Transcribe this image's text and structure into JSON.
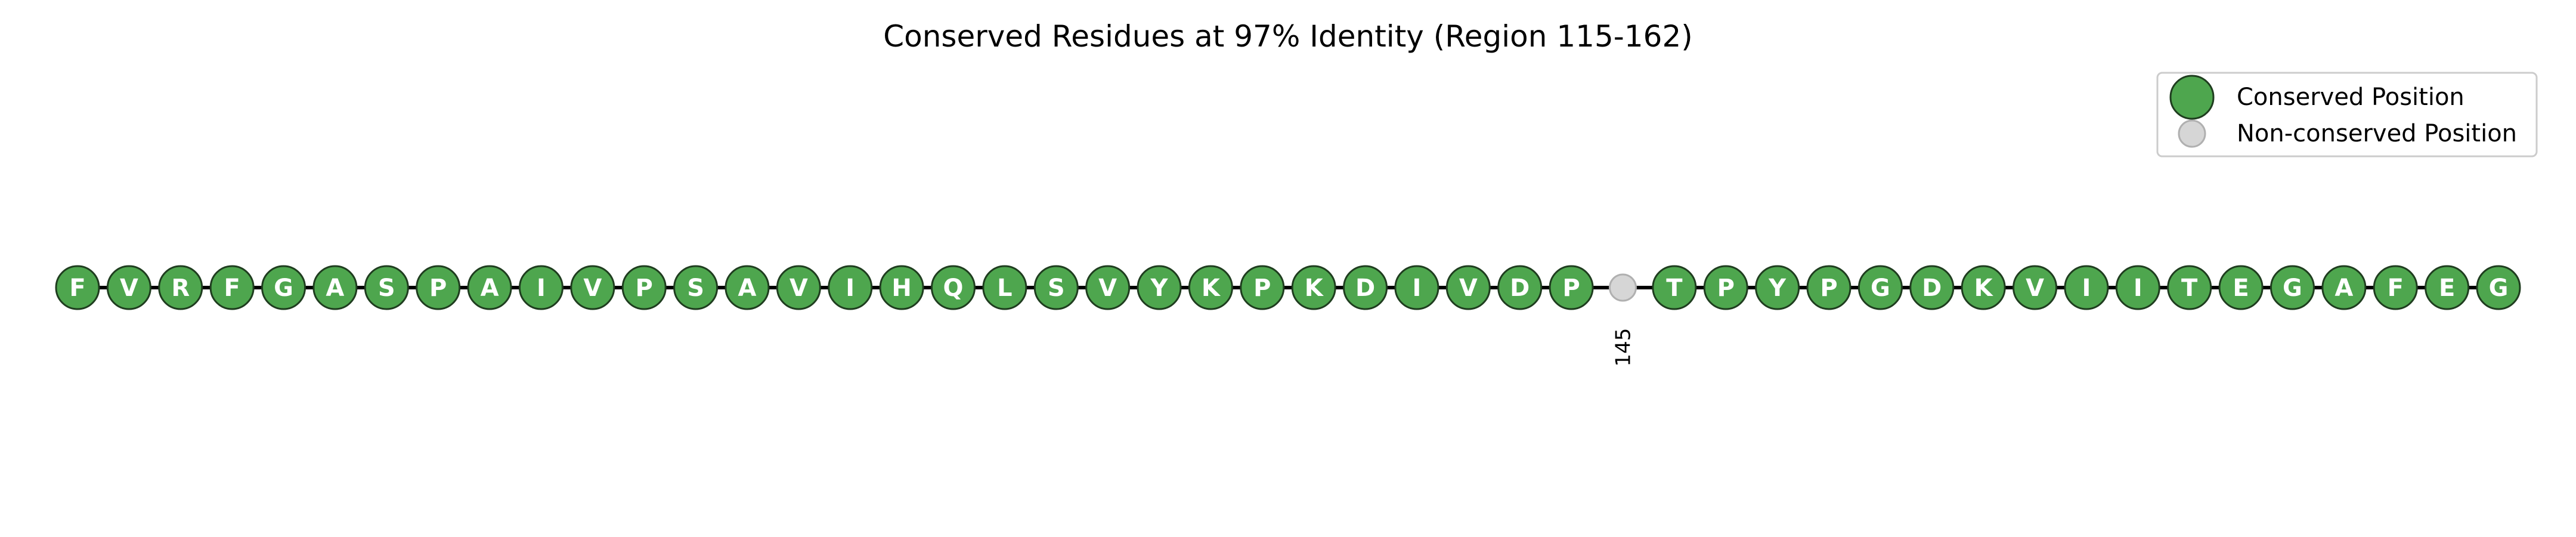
{
  "chart_data": {
    "type": "sequence-conservation",
    "title": "Conserved Residues at 97% Identity (Region 115-162)",
    "region_start": 115,
    "region_end": 162,
    "identity_threshold_percent": 97,
    "residues": [
      {
        "position": 115,
        "residue": "F",
        "conserved": true
      },
      {
        "position": 116,
        "residue": "V",
        "conserved": true
      },
      {
        "position": 117,
        "residue": "R",
        "conserved": true
      },
      {
        "position": 118,
        "residue": "F",
        "conserved": true
      },
      {
        "position": 119,
        "residue": "G",
        "conserved": true
      },
      {
        "position": 120,
        "residue": "A",
        "conserved": true
      },
      {
        "position": 121,
        "residue": "S",
        "conserved": true
      },
      {
        "position": 122,
        "residue": "P",
        "conserved": true
      },
      {
        "position": 123,
        "residue": "A",
        "conserved": true
      },
      {
        "position": 124,
        "residue": "I",
        "conserved": true
      },
      {
        "position": 125,
        "residue": "V",
        "conserved": true
      },
      {
        "position": 126,
        "residue": "P",
        "conserved": true
      },
      {
        "position": 127,
        "residue": "S",
        "conserved": true
      },
      {
        "position": 128,
        "residue": "A",
        "conserved": true
      },
      {
        "position": 129,
        "residue": "V",
        "conserved": true
      },
      {
        "position": 130,
        "residue": "I",
        "conserved": true
      },
      {
        "position": 131,
        "residue": "H",
        "conserved": true
      },
      {
        "position": 132,
        "residue": "Q",
        "conserved": true
      },
      {
        "position": 133,
        "residue": "L",
        "conserved": true
      },
      {
        "position": 134,
        "residue": "S",
        "conserved": true
      },
      {
        "position": 135,
        "residue": "V",
        "conserved": true
      },
      {
        "position": 136,
        "residue": "Y",
        "conserved": true
      },
      {
        "position": 137,
        "residue": "K",
        "conserved": true
      },
      {
        "position": 138,
        "residue": "P",
        "conserved": true
      },
      {
        "position": 139,
        "residue": "K",
        "conserved": true
      },
      {
        "position": 140,
        "residue": "D",
        "conserved": true
      },
      {
        "position": 141,
        "residue": "I",
        "conserved": true
      },
      {
        "position": 142,
        "residue": "V",
        "conserved": true
      },
      {
        "position": 143,
        "residue": "D",
        "conserved": true
      },
      {
        "position": 144,
        "residue": "P",
        "conserved": true
      },
      {
        "position": 145,
        "residue": "",
        "conserved": false,
        "label": "145"
      },
      {
        "position": 146,
        "residue": "T",
        "conserved": true
      },
      {
        "position": 147,
        "residue": "P",
        "conserved": true
      },
      {
        "position": 148,
        "residue": "Y",
        "conserved": true
      },
      {
        "position": 149,
        "residue": "P",
        "conserved": true
      },
      {
        "position": 150,
        "residue": "G",
        "conserved": true
      },
      {
        "position": 151,
        "residue": "D",
        "conserved": true
      },
      {
        "position": 152,
        "residue": "K",
        "conserved": true
      },
      {
        "position": 153,
        "residue": "V",
        "conserved": true
      },
      {
        "position": 154,
        "residue": "I",
        "conserved": true
      },
      {
        "position": 155,
        "residue": "I",
        "conserved": true
      },
      {
        "position": 156,
        "residue": "T",
        "conserved": true
      },
      {
        "position": 157,
        "residue": "E",
        "conserved": true
      },
      {
        "position": 158,
        "residue": "G",
        "conserved": true
      },
      {
        "position": 159,
        "residue": "A",
        "conserved": true
      },
      {
        "position": 160,
        "residue": "F",
        "conserved": true
      },
      {
        "position": 161,
        "residue": "E",
        "conserved": true
      },
      {
        "position": 162,
        "residue": "G",
        "conserved": true
      }
    ],
    "legend": {
      "placement": "top-right",
      "entries": [
        {
          "label": "Conserved Position",
          "color": "#4ea64e"
        },
        {
          "label": "Non-conserved Position",
          "color": "#d6d6d6"
        }
      ]
    },
    "colors": {
      "conserved": "#4ea64e",
      "non_conserved": "#d6d6d6",
      "backbone": "#000000"
    }
  }
}
